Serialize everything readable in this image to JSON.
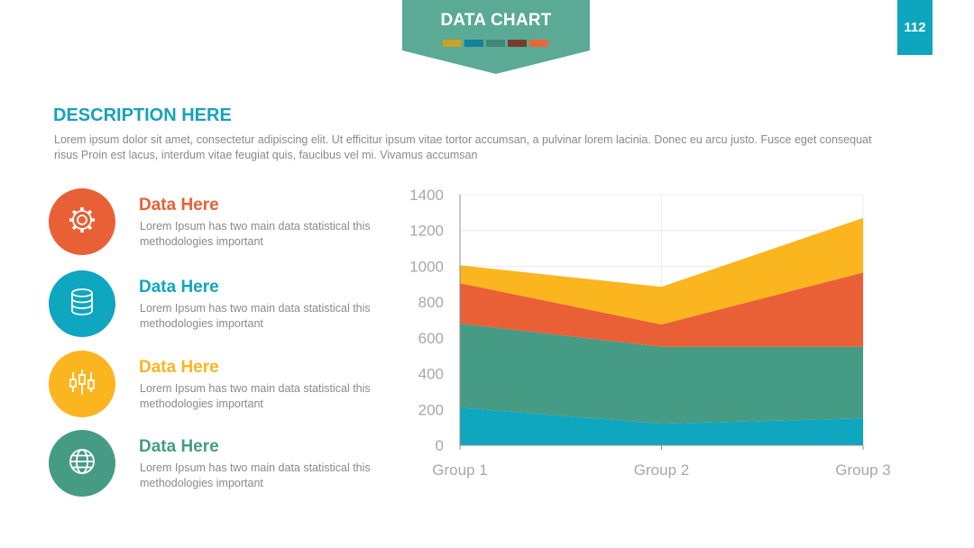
{
  "header": {
    "title": "DATA CHART",
    "swatches": [
      "#c9a227",
      "#12819a",
      "#3f8a77",
      "#7a3b2e",
      "#e9663b"
    ],
    "banner_color": "#5aaa95",
    "page_number": "112"
  },
  "description": {
    "title": "DESCRIPTION HERE",
    "text": "Lorem ipsum dolor sit amet, consectetur adipiscing elit. Ut efficitur ipsum vitae tortor accumsan, a pulvinar lorem lacinia. Donec eu arcu justo. Fusce eget consequat risus Proin est lacus, interdum vitae feugiat quis, faucibus vel mi.  Vivamus accumsan"
  },
  "items": [
    {
      "title": "Data Here",
      "text": "Lorem Ipsum has two main data statistical this methodologies important",
      "color": "#e96036",
      "icon": "gear-icon"
    },
    {
      "title": "Data Here",
      "text": "Lorem Ipsum has two main data statistical this methodologies important",
      "color": "#0fa6bf",
      "icon": "database-icon"
    },
    {
      "title": "Data Here",
      "text": "Lorem Ipsum has two main data statistical this methodologies important",
      "color": "#fbb51f",
      "icon": "sliders-icon"
    },
    {
      "title": "Data Here",
      "text": "Lorem Ipsum has two main data statistical this methodologies important",
      "color": "#469b85",
      "icon": "globe-icon"
    }
  ],
  "chart_data": {
    "type": "area",
    "stacked": true,
    "categories": [
      "Group 1",
      "Group 2",
      "Group 3"
    ],
    "series": [
      {
        "values": [
          210,
          120,
          150
        ],
        "color": "#0fa6bf"
      },
      {
        "values": [
          470,
          430,
          400
        ],
        "color": "#469b85"
      },
      {
        "values": [
          225,
          125,
          415
        ],
        "color": "#e96036"
      },
      {
        "values": [
          100,
          210,
          305
        ],
        "color": "#fbb51f"
      }
    ],
    "ylim": [
      0,
      1400
    ],
    "yticks": [
      0,
      200,
      400,
      600,
      800,
      1000,
      1200,
      1400
    ],
    "grid": true,
    "legend": "none"
  }
}
